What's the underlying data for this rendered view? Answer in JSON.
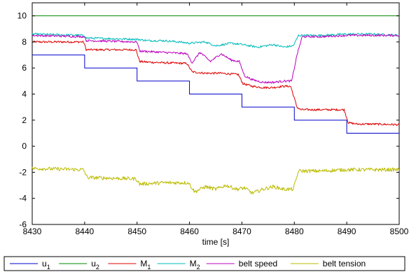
{
  "chart_data": {
    "type": "line",
    "title": "",
    "xlabel": "time [s]",
    "ylabel": "",
    "xlim": [
      8430,
      8500
    ],
    "ylim": [
      -6,
      11
    ],
    "xticks": [
      8430,
      8440,
      8450,
      8460,
      8470,
      8480,
      8490,
      8500
    ],
    "yticks": [
      -6,
      -4,
      -2,
      0,
      2,
      4,
      6,
      8,
      10
    ],
    "grid": false,
    "legend": {
      "placement": "bottom-outside",
      "orientation": "horizontal"
    },
    "series": [
      {
        "name": "u",
        "name_sub": "1",
        "color": "#0000cc",
        "style": "step",
        "x": [
          8430,
          8440,
          8440,
          8450,
          8450,
          8460,
          8460,
          8470,
          8470,
          8480,
          8480,
          8490,
          8490,
          8500
        ],
        "y": [
          7,
          7,
          6,
          6,
          5,
          5,
          4,
          4,
          3,
          3,
          2,
          2,
          1,
          1
        ]
      },
      {
        "name": "u",
        "name_sub": "2",
        "color": "#008800",
        "style": "line",
        "x": [
          8430,
          8500
        ],
        "y": [
          10,
          10
        ]
      },
      {
        "name": "M",
        "name_sub": "1",
        "color": "#dd0000",
        "style": "noisy",
        "x": [
          8430,
          8439.8,
          8440.3,
          8449.8,
          8450.5,
          8452,
          8455,
          8459.5,
          8460.5,
          8463,
          8466,
          8469.3,
          8470.2,
          8472,
          8474,
          8476,
          8477.8,
          8479.3,
          8480.5,
          8481.2,
          8484,
          8489.5,
          8490.3,
          8492,
          8495,
          8500
        ],
        "y": [
          8.0,
          8.0,
          7.4,
          7.4,
          6.5,
          6.45,
          6.4,
          6.35,
          5.7,
          5.6,
          5.6,
          5.5,
          4.8,
          4.6,
          4.5,
          4.5,
          4.6,
          4.6,
          3.0,
          2.8,
          2.8,
          2.8,
          1.8,
          1.7,
          1.7,
          1.65
        ]
      },
      {
        "name": "M",
        "name_sub": "2",
        "color": "#00bbbb",
        "style": "noisy",
        "x": [
          8430,
          8440,
          8440.3,
          8450,
          8452,
          8455,
          8458,
          8460,
          8463,
          8465,
          8468,
          8470,
          8473,
          8476,
          8478,
          8479.8,
          8480.8,
          8485,
          8490,
          8495,
          8500
        ],
        "y": [
          8.6,
          8.5,
          8.3,
          8.2,
          8.1,
          8.1,
          8.0,
          7.9,
          8.0,
          7.7,
          7.9,
          7.8,
          7.6,
          7.8,
          7.6,
          7.7,
          8.5,
          8.5,
          8.6,
          8.6,
          8.5
        ]
      },
      {
        "name": "belt speed",
        "color": "#bb00bb",
        "style": "noisy",
        "x": [
          8430,
          8440,
          8440.3,
          8450,
          8450.5,
          8455,
          8459.5,
          8460.5,
          8462,
          8464,
          8466,
          8468,
          8469.5,
          8470.5,
          8472,
          8474,
          8476,
          8478,
          8479.5,
          8480.5,
          8481.5,
          8485,
          8490,
          8495,
          8500
        ],
        "y": [
          8.5,
          8.4,
          8.1,
          8.0,
          7.3,
          7.2,
          7.1,
          6.4,
          7.2,
          6.5,
          7.1,
          6.6,
          6.5,
          5.4,
          5.1,
          4.9,
          4.9,
          5.0,
          5.0,
          7.0,
          8.4,
          8.4,
          8.5,
          8.5,
          8.5
        ]
      },
      {
        "name": "belt tension",
        "color": "#bbbb00",
        "style": "noisy",
        "x": [
          8430,
          8439.8,
          8440.5,
          8449.8,
          8450.5,
          8455,
          8459.8,
          8461,
          8463,
          8465,
          8467,
          8469,
          8470.5,
          8472,
          8474,
          8476,
          8478,
          8479.8,
          8480.8,
          8485,
          8490,
          8495,
          8500
        ],
        "y": [
          -1.7,
          -1.8,
          -2.4,
          -2.5,
          -2.9,
          -2.8,
          -2.8,
          -3.5,
          -3.1,
          -3.3,
          -3.0,
          -3.3,
          -3.2,
          -3.6,
          -3.3,
          -3.1,
          -3.3,
          -3.3,
          -1.9,
          -1.9,
          -1.8,
          -1.8,
          -1.8
        ]
      }
    ]
  }
}
